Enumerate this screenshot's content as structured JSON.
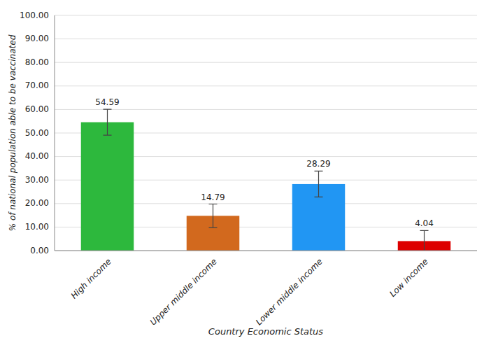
{
  "chart_data": {
    "type": "bar",
    "categories": [
      "High income",
      "Upper middle income",
      "Lower middle income",
      "Low income"
    ],
    "values": [
      54.59,
      14.79,
      28.29,
      4.04
    ],
    "errors": [
      5.5,
      5.0,
      5.5,
      4.5
    ],
    "colors": [
      "#2db83d",
      "#d2691e",
      "#2196f3",
      "#dd0000"
    ],
    "xlabel": "Country Economic Status",
    "ylabel": "% of national population able to be vaccinated",
    "ylim": [
      0,
      100
    ],
    "yticks": [
      {
        "value": 0,
        "label": "0.00"
      },
      {
        "value": 10,
        "label": "10.00"
      },
      {
        "value": 20,
        "label": "20.00"
      },
      {
        "value": 30,
        "label": "30.00"
      },
      {
        "value": 40,
        "label": "40.00"
      },
      {
        "value": 50,
        "label": "50.00"
      },
      {
        "value": 60,
        "label": "60.00"
      },
      {
        "value": 70,
        "label": "70.00"
      },
      {
        "value": 80,
        "label": "80.00"
      },
      {
        "value": 90,
        "label": "90.00"
      },
      {
        "value": 100,
        "label": "100.00"
      }
    ],
    "grid": true,
    "data_labels": true
  }
}
